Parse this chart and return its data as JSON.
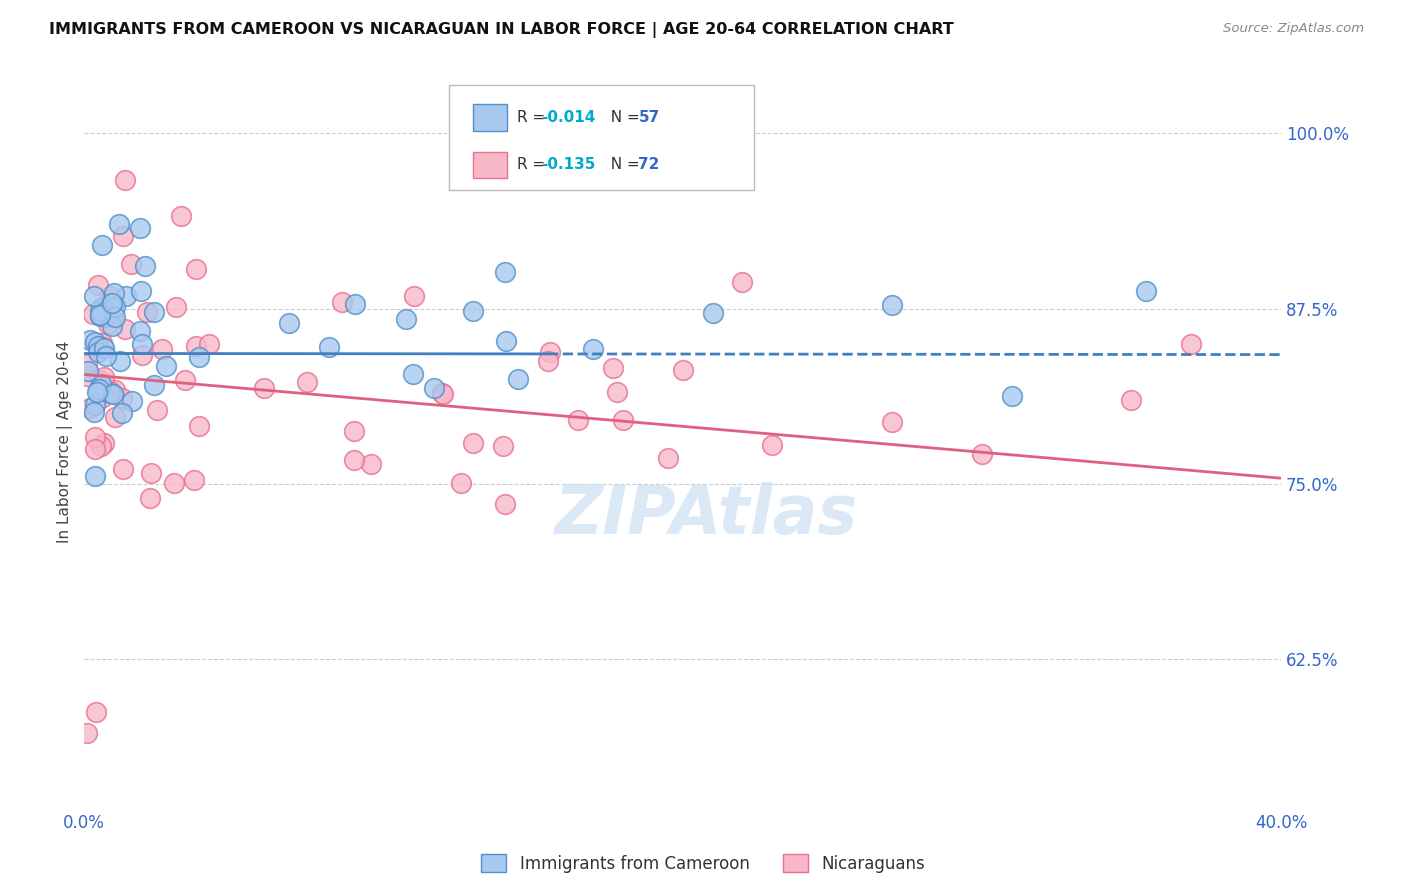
{
  "title": "IMMIGRANTS FROM CAMEROON VS NICARAGUAN IN LABOR FORCE | AGE 20-64 CORRELATION CHART",
  "source": "Source: ZipAtlas.com",
  "ylabel": "In Labor Force | Age 20-64",
  "xlim": [
    0.0,
    0.4
  ],
  "ylim": [
    0.52,
    1.04
  ],
  "yticks_right": [
    0.625,
    0.75,
    0.875,
    1.0
  ],
  "ytick_labels_right": [
    "62.5%",
    "75.0%",
    "87.5%",
    "100.0%"
  ],
  "cameroon_R": -0.014,
  "cameroon_N": 57,
  "nicaraguan_R": -0.135,
  "nicaraguan_N": 72,
  "blue_fill": "#A8C8F0",
  "blue_edge": "#5090C8",
  "pink_fill": "#F8B8C8",
  "pink_edge": "#E87090",
  "blue_line_color": "#4080C0",
  "pink_line_color": "#E06080",
  "legend_R_color": "#00AACC",
  "legend_N_color": "#3366CC",
  "watermark_color": "#C8DCF0",
  "grid_color": "#CCCCCC",
  "title_color": "#111111",
  "source_color": "#888888",
  "axis_tick_color": "#3366CC"
}
